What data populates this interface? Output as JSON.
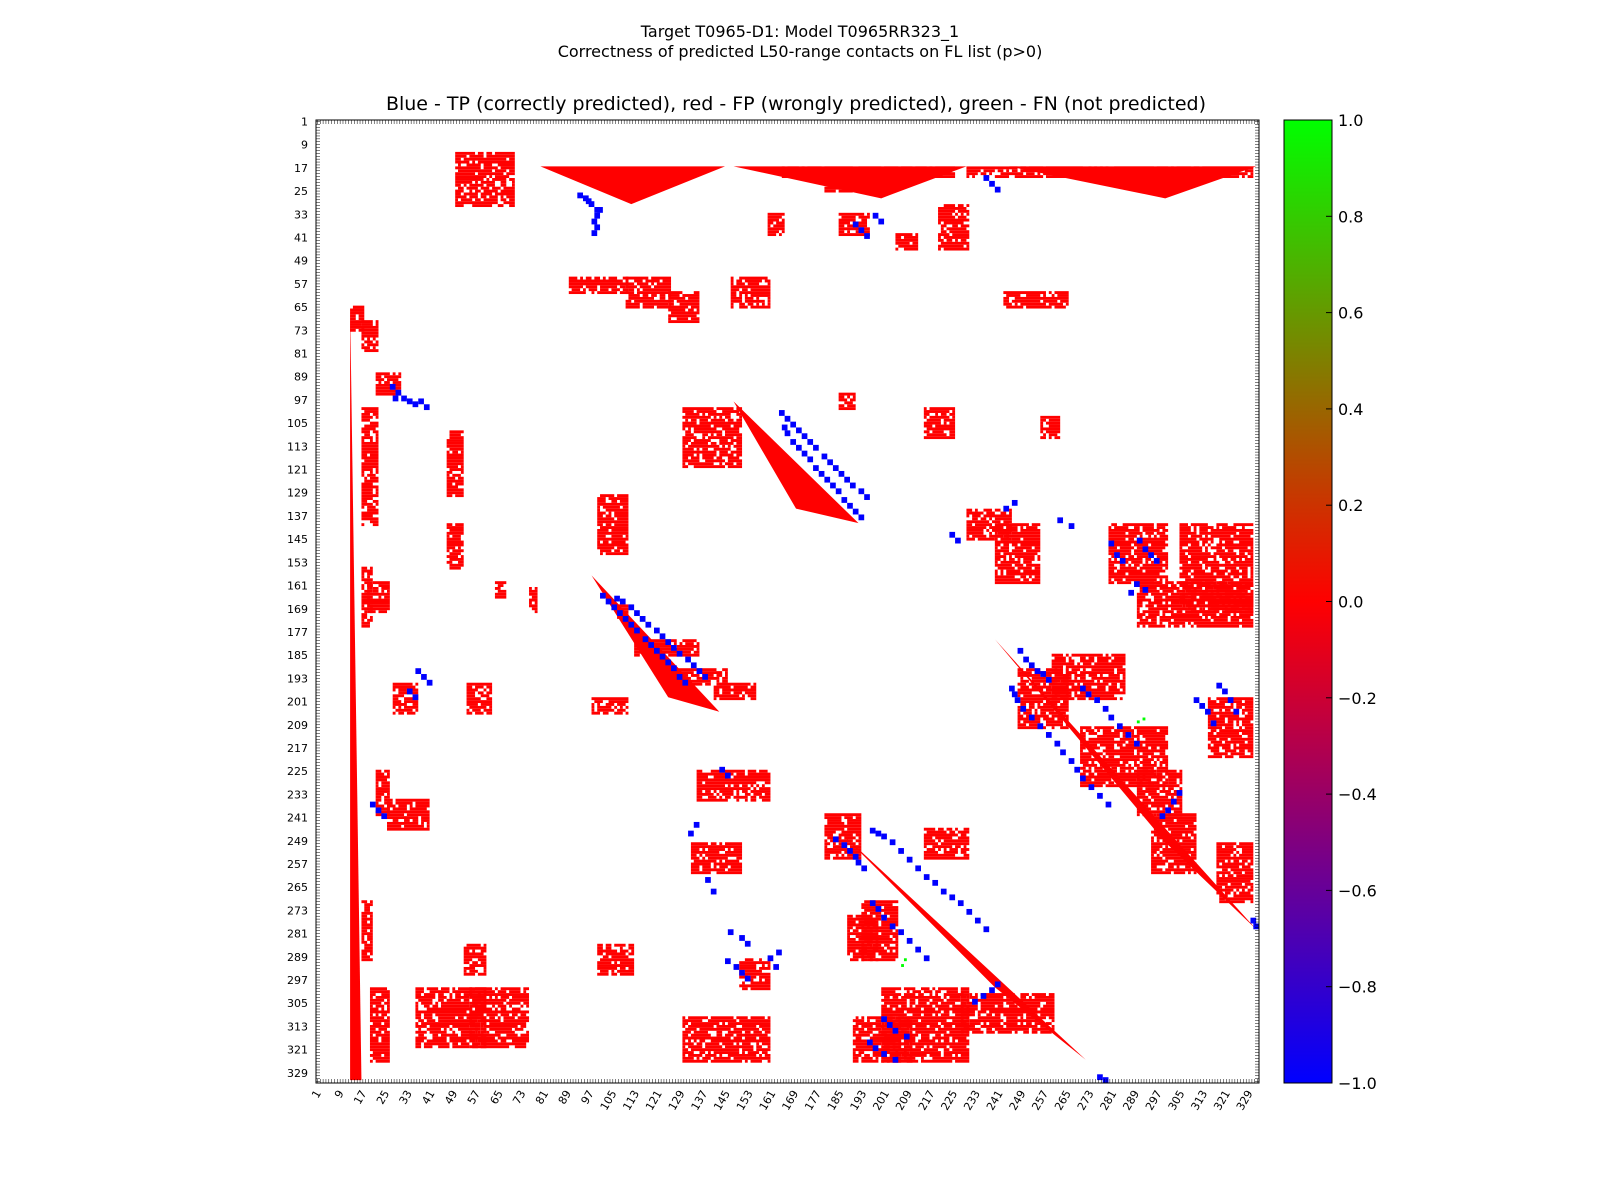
{
  "suptitle_line1": "Target T0965-D1: Model T0965RR323_1",
  "suptitle_line2": "Correctness of predicted L50-range contacts on FL list (p>0)",
  "chart_data": {
    "type": "heatmap",
    "title": "Blue - TP (correctly predicted), red - FP (wrongly predicted), green - FN (not predicted)",
    "xlabel": "",
    "ylabel": "",
    "xlim": [
      1,
      332
    ],
    "ylim": [
      1,
      332
    ],
    "y_inverted": true,
    "tick_labels": [
      "1",
      "9",
      "17",
      "25",
      "33",
      "41",
      "49",
      "57",
      "65",
      "73",
      "81",
      "89",
      "97",
      "105",
      "113",
      "121",
      "129",
      "137",
      "145",
      "153",
      "161",
      "169",
      "177",
      "185",
      "193",
      "201",
      "209",
      "217",
      "225",
      "233",
      "241",
      "249",
      "257",
      "265",
      "273",
      "281",
      "289",
      "297",
      "305",
      "313",
      "321",
      "329"
    ],
    "colorbar": {
      "range": [
        -1.0,
        1.0
      ],
      "tick_labels": [
        "1.0",
        "0.8",
        "0.6",
        "0.4",
        "0.2",
        "0.0",
        "−0.2",
        "−0.4",
        "−0.6",
        "−0.8",
        "−1.0"
      ],
      "colors": [
        "#0000ff",
        "#ff0000",
        "#00ff00"
      ]
    },
    "legend": {
      "TP": {
        "value": -1,
        "color": "#0000ff"
      },
      "FP": {
        "value": 0,
        "color": "#ff0000"
      },
      "FN": {
        "value": 1,
        "color": "#00ff00"
      }
    },
    "fp_regions": [
      [
        65,
        73,
        332,
        13,
        17
      ],
      [
        70,
        80,
        120,
        17,
        22
      ],
      [
        88,
        95,
        110,
        22,
        30
      ],
      [
        100,
        140,
        140,
        17,
        22
      ],
      [
        108,
        130,
        135,
        47,
        52
      ],
      [
        140,
        155,
        145,
        47,
        52
      ],
      [
        160,
        170,
        170,
        19,
        26
      ],
      [
        155,
        175,
        180,
        17,
        20
      ],
      [
        195,
        205,
        215,
        28,
        36
      ],
      [
        195,
        205,
        210,
        54,
        62
      ],
      [
        225,
        240,
        245,
        22,
        26
      ],
      [
        235,
        245,
        250,
        26,
        40
      ],
      [
        270,
        290,
        300,
        17,
        20
      ],
      [
        285,
        295,
        300,
        53,
        60
      ],
      [
        300,
        325,
        332,
        20,
        26
      ],
      [
        300,
        320,
        320,
        36,
        60
      ],
      [
        160,
        165,
        165,
        64,
        67
      ],
      [
        162,
        170,
        170,
        76,
        78
      ],
      [
        168,
        172,
        172,
        107,
        110
      ],
      [
        180,
        185,
        190,
        113,
        135
      ],
      [
        190,
        195,
        200,
        125,
        145
      ],
      [
        200,
        205,
        205,
        98,
        110
      ],
      [
        195,
        200,
        200,
        141,
        155
      ],
      [
        285,
        295,
        295,
        100,
        112
      ],
      [
        290,
        300,
        300,
        150,
        160
      ],
      [
        300,
        320,
        320,
        55,
        75
      ],
      [
        310,
        325,
        330,
        130,
        160
      ],
      [
        225,
        235,
        230,
        135,
        160
      ],
      [
        250,
        260,
        265,
        133,
        150
      ],
      [
        275,
        290,
        290,
        188,
        198
      ],
      [
        245,
        255,
        255,
        215,
        230
      ],
      [
        310,
        325,
        325,
        190,
        210
      ],
      [
        240,
        255,
        250,
        180,
        192
      ],
      [
        270,
        290,
        290,
        193,
        205
      ],
      [
        300,
        325,
        325,
        200,
        230
      ],
      [
        302,
        315,
        320,
        228,
        260
      ],
      [
        190,
        210,
        210,
        248,
        265
      ],
      [
        185,
        200,
        205,
        260,
        285
      ],
      [
        210,
        230,
        230,
        270,
        300
      ],
      [
        225,
        240,
        240,
        290,
        305
      ],
      [
        240,
        260,
        260,
        295,
        310
      ],
      [
        200,
        220,
        220,
        315,
        330
      ],
      [
        250,
        270,
        265,
        318,
        330
      ],
      [
        160,
        175,
        180,
        290,
        330
      ],
      [
        140,
        160,
        160,
        280,
        300
      ],
      [
        140,
        170,
        170,
        305,
        330
      ],
      [
        135,
        145,
        155,
        230,
        245
      ],
      [
        140,
        160,
        160,
        240,
        255
      ],
      [
        130,
        150,
        150,
        100,
        110
      ],
      [
        100,
        120,
        125,
        130,
        150
      ],
      [
        95,
        100,
        105,
        185,
        190
      ],
      [
        100,
        110,
        110,
        215,
        225
      ],
      [
        60,
        70,
        70,
        125,
        135
      ],
      [
        55,
        65,
        65,
        110,
        125
      ],
      [
        30,
        45,
        45,
        220,
        230
      ],
      [
        12,
        30,
        20,
        50,
        70
      ],
      [
        33,
        40,
        40,
        185,
        195
      ],
      [
        55,
        65,
        75,
        147,
        160
      ],
      [
        55,
        60,
        65,
        90,
        110
      ],
      [
        60,
        65,
        70,
        243,
        265
      ],
      [
        103,
        110,
        110,
        256,
        262
      ],
      [
        17,
        20,
        20,
        165,
        225
      ],
      [
        20,
        25,
        30,
        180,
        190
      ],
      [
        33,
        40,
        40,
        160,
        165
      ],
      [
        40,
        45,
        45,
        205,
        212
      ],
      [
        17,
        20,
        20,
        230,
        330
      ]
    ],
    "fp_corners": [
      [
        [
          17,
          80
        ],
        [
          17,
          145
        ],
        [
          30,
          112
        ]
      ],
      [
        [
          17,
          148
        ],
        [
          17,
          230
        ],
        [
          28,
          200
        ]
      ],
      [
        [
          17,
          245
        ],
        [
          17,
          332
        ],
        [
          28,
          300
        ]
      ],
      [
        [
          65,
          13
        ],
        [
          332,
          13
        ],
        [
          332,
          17
        ]
      ],
      [
        [
          98,
          148
        ],
        [
          140,
          192
        ],
        [
          135,
          170
        ]
      ],
      [
        [
          158,
          98
        ],
        [
          205,
          143
        ],
        [
          200,
          125
        ]
      ],
      [
        [
          246,
          185
        ],
        [
          325,
          272
        ],
        [
          300,
          240
        ]
      ],
      [
        [
          180,
          240
        ],
        [
          280,
          332
        ],
        [
          250,
          300
        ]
      ]
    ],
    "tp_points": [
      [
        26,
        93
      ],
      [
        27,
        95
      ],
      [
        29,
        97
      ],
      [
        31,
        99
      ],
      [
        33,
        99
      ],
      [
        35,
        98
      ],
      [
        37,
        99
      ],
      [
        39,
        98
      ],
      [
        28,
        96
      ],
      [
        31,
        100
      ],
      [
        92,
        27
      ],
      [
        94,
        29
      ],
      [
        96,
        31
      ],
      [
        97,
        33
      ],
      [
        98,
        35
      ],
      [
        97,
        37
      ],
      [
        99,
        39
      ],
      [
        96,
        28
      ],
      [
        106,
        165
      ],
      [
        108,
        166
      ],
      [
        111,
        168
      ],
      [
        113,
        170
      ],
      [
        115,
        172
      ],
      [
        117,
        174
      ],
      [
        120,
        176
      ],
      [
        122,
        178
      ],
      [
        124,
        180
      ],
      [
        126,
        182
      ],
      [
        128,
        184
      ],
      [
        131,
        186
      ],
      [
        133,
        188
      ],
      [
        135,
        190
      ],
      [
        137,
        192
      ],
      [
        165,
        106
      ],
      [
        166,
        108
      ],
      [
        168,
        111
      ],
      [
        170,
        113
      ],
      [
        172,
        115
      ],
      [
        174,
        117
      ],
      [
        176,
        120
      ],
      [
        178,
        122
      ],
      [
        180,
        124
      ],
      [
        182,
        126
      ],
      [
        184,
        128
      ],
      [
        186,
        131
      ],
      [
        188,
        133
      ],
      [
        190,
        135
      ],
      [
        192,
        137
      ],
      [
        164,
        101
      ],
      [
        166,
        103
      ],
      [
        168,
        105
      ],
      [
        170,
        107
      ],
      [
        172,
        109
      ],
      [
        174,
        111
      ],
      [
        176,
        113
      ],
      [
        179,
        116
      ],
      [
        181,
        118
      ],
      [
        183,
        120
      ],
      [
        185,
        122
      ],
      [
        187,
        124
      ],
      [
        189,
        126
      ],
      [
        192,
        128
      ],
      [
        194,
        130
      ],
      [
        101,
        164
      ],
      [
        103,
        166
      ],
      [
        105,
        168
      ],
      [
        107,
        170
      ],
      [
        109,
        172
      ],
      [
        111,
        174
      ],
      [
        113,
        176
      ],
      [
        116,
        179
      ],
      [
        118,
        181
      ],
      [
        120,
        183
      ],
      [
        122,
        185
      ],
      [
        124,
        187
      ],
      [
        126,
        189
      ],
      [
        128,
        192
      ],
      [
        130,
        194
      ],
      [
        196,
        245
      ],
      [
        198,
        246
      ],
      [
        200,
        247
      ],
      [
        203,
        249
      ],
      [
        206,
        252
      ],
      [
        209,
        255
      ],
      [
        212,
        258
      ],
      [
        215,
        261
      ],
      [
        218,
        263
      ],
      [
        221,
        266
      ],
      [
        224,
        268
      ],
      [
        227,
        270
      ],
      [
        230,
        273
      ],
      [
        233,
        276
      ],
      [
        236,
        279
      ],
      [
        245,
        196
      ],
      [
        246,
        198
      ],
      [
        247,
        200
      ],
      [
        249,
        203
      ],
      [
        252,
        206
      ],
      [
        255,
        209
      ],
      [
        258,
        212
      ],
      [
        261,
        215
      ],
      [
        263,
        218
      ],
      [
        266,
        221
      ],
      [
        268,
        224
      ],
      [
        270,
        227
      ],
      [
        273,
        230
      ],
      [
        276,
        233
      ],
      [
        279,
        236
      ],
      [
        248,
        183
      ],
      [
        250,
        186
      ],
      [
        252,
        188
      ],
      [
        254,
        190
      ],
      [
        256,
        191
      ],
      [
        258,
        193
      ],
      [
        183,
        248
      ],
      [
        186,
        250
      ],
      [
        188,
        252
      ],
      [
        190,
        254
      ],
      [
        191,
        256
      ],
      [
        193,
        258
      ],
      [
        270,
        196
      ],
      [
        272,
        198
      ],
      [
        275,
        200
      ],
      [
        278,
        203
      ],
      [
        280,
        206
      ],
      [
        283,
        209
      ],
      [
        286,
        212
      ],
      [
        289,
        215
      ],
      [
        196,
        270
      ],
      [
        198,
        272
      ],
      [
        200,
        275
      ],
      [
        203,
        278
      ],
      [
        206,
        280
      ],
      [
        209,
        283
      ],
      [
        212,
        286
      ],
      [
        215,
        289
      ],
      [
        290,
        145
      ],
      [
        292,
        148
      ],
      [
        294,
        150
      ],
      [
        296,
        152
      ],
      [
        224,
        143
      ],
      [
        226,
        145
      ],
      [
        289,
        160
      ],
      [
        287,
        163
      ],
      [
        145,
        290
      ],
      [
        148,
        292
      ],
      [
        150,
        294
      ],
      [
        152,
        296
      ],
      [
        143,
        224
      ],
      [
        145,
        226
      ],
      [
        160,
        289
      ],
      [
        163,
        287
      ],
      [
        36,
        190
      ],
      [
        38,
        192
      ],
      [
        40,
        194
      ],
      [
        33,
        197
      ],
      [
        35,
        199
      ],
      [
        20,
        236
      ],
      [
        22,
        238
      ],
      [
        24,
        240
      ],
      [
        190,
        36
      ],
      [
        192,
        38
      ],
      [
        194,
        40
      ],
      [
        197,
        33
      ],
      [
        199,
        35
      ],
      [
        236,
        20
      ],
      [
        238,
        22
      ],
      [
        240,
        24
      ],
      [
        134,
        243
      ],
      [
        132,
        246
      ],
      [
        138,
        262
      ],
      [
        140,
        266
      ],
      [
        146,
        280
      ],
      [
        150,
        282
      ],
      [
        152,
        284
      ],
      [
        162,
        292
      ],
      [
        243,
        134
      ],
      [
        246,
        132
      ],
      [
        262,
        138
      ],
      [
        266,
        140
      ],
      [
        280,
        146
      ],
      [
        282,
        150
      ],
      [
        284,
        152
      ],
      [
        292,
        162
      ],
      [
        200,
        310
      ],
      [
        202,
        312
      ],
      [
        204,
        314
      ],
      [
        208,
        316
      ],
      [
        232,
        304
      ],
      [
        235,
        302
      ],
      [
        238,
        300
      ],
      [
        240,
        298
      ],
      [
        310,
        200
      ],
      [
        312,
        202
      ],
      [
        314,
        204
      ],
      [
        316,
        208
      ],
      [
        304,
        232
      ],
      [
        302,
        235
      ],
      [
        300,
        238
      ],
      [
        298,
        240
      ],
      [
        318,
        195
      ],
      [
        320,
        197
      ],
      [
        322,
        200
      ],
      [
        324,
        204
      ],
      [
        195,
        318
      ],
      [
        197,
        320
      ],
      [
        200,
        322
      ],
      [
        204,
        324
      ],
      [
        276,
        330
      ],
      [
        278,
        331
      ],
      [
        330,
        276
      ],
      [
        331,
        278
      ]
    ],
    "fn_points": [
      [
        208,
        290
      ],
      [
        207,
        292
      ],
      [
        290,
        208
      ],
      [
        292,
        207
      ]
    ]
  }
}
